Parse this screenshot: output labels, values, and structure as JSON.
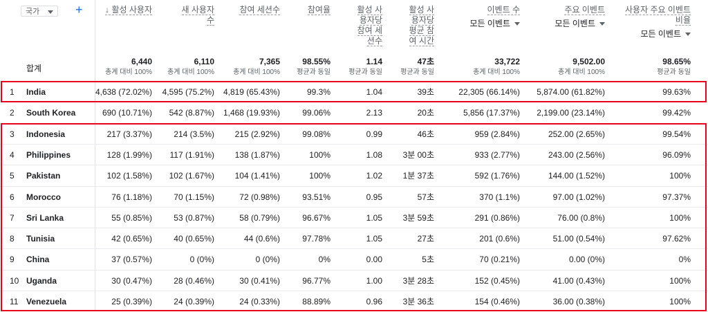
{
  "dimension": {
    "label": "국가"
  },
  "columns": [
    {
      "key": "active_users",
      "title": "↓ 활성 사용자",
      "lines": [
        "↓ 활성 사용자"
      ],
      "sub": ""
    },
    {
      "key": "new_users",
      "title": "새 사용자 수",
      "lines": [
        "새 사용자",
        "수"
      ],
      "sub": ""
    },
    {
      "key": "engaged_sessions",
      "title": "참여 세션수",
      "lines": [
        "참여 세션수"
      ],
      "sub": ""
    },
    {
      "key": "engagement_rate",
      "title": "참여율",
      "lines": [
        "참여율"
      ],
      "sub": ""
    },
    {
      "key": "engaged_sessions_per_user",
      "title": "활성 사용자당 참여 세션수",
      "lines": [
        "활성 사",
        "용자당",
        "참여 세",
        "션수"
      ],
      "sub": ""
    },
    {
      "key": "avg_engagement_time",
      "title": "활성 사용자당 평균 참여 시간",
      "lines": [
        "활성 사",
        "용자당",
        "평균 참",
        "여 시간"
      ],
      "sub": ""
    },
    {
      "key": "event_count",
      "title": "이벤트 수",
      "lines": [
        "이벤트 수"
      ],
      "sub": "모든 이벤트"
    },
    {
      "key": "key_events",
      "title": "주요 이벤트",
      "lines": [
        "주요 이벤트"
      ],
      "sub": "모든 이벤트"
    },
    {
      "key": "user_key_event_rate",
      "title": "사용자 주요 이벤트 비율",
      "lines": [
        "사용자 주요 이벤트",
        "비율"
      ],
      "sub": "모든 이벤트"
    }
  ],
  "totals": {
    "label": "합계",
    "values": [
      {
        "v": "6,440",
        "n": "총계 대비 100%"
      },
      {
        "v": "6,110",
        "n": "총계 대비 100%"
      },
      {
        "v": "7,365",
        "n": "총계 대비 100%"
      },
      {
        "v": "98.55%",
        "n": "평균과 동일"
      },
      {
        "v": "1.14",
        "n": "평균과 동일"
      },
      {
        "v": "47초",
        "n": "평균과 동일"
      },
      {
        "v": "33,722",
        "n": "총계 대비 100%"
      },
      {
        "v": "9,502.00",
        "n": "총계 대비 100%"
      },
      {
        "v": "98.65%",
        "n": "평균과 동일"
      }
    ]
  },
  "rows": [
    {
      "idx": "1",
      "country": "India",
      "values": [
        "4,638 (72.02%)",
        "4,595 (75.2%)",
        "4,819 (65.43%)",
        "99.3%",
        "1.04",
        "39초",
        "22,305 (66.14%)",
        "5,874.00 (61.82%)",
        "99.63%"
      ]
    },
    {
      "idx": "2",
      "country": "South Korea",
      "values": [
        "690 (10.71%)",
        "542 (8.87%)",
        "1,468 (19.93%)",
        "99.06%",
        "2.13",
        "20초",
        "5,856 (17.37%)",
        "2,199.00 (23.14%)",
        "99.42%"
      ]
    },
    {
      "idx": "3",
      "country": "Indonesia",
      "values": [
        "217 (3.37%)",
        "214 (3.5%)",
        "215 (2.92%)",
        "99.08%",
        "0.99",
        "46초",
        "959 (2.84%)",
        "252.00 (2.65%)",
        "99.54%"
      ]
    },
    {
      "idx": "4",
      "country": "Philippines",
      "values": [
        "128 (1.99%)",
        "117 (1.91%)",
        "138 (1.87%)",
        "100%",
        "1.08",
        "3분 00초",
        "933 (2.77%)",
        "243.00 (2.56%)",
        "96.09%"
      ]
    },
    {
      "idx": "5",
      "country": "Pakistan",
      "values": [
        "102 (1.58%)",
        "102 (1.67%)",
        "104 (1.41%)",
        "100%",
        "1.02",
        "1분 37초",
        "592 (1.76%)",
        "144.00 (1.52%)",
        "100%"
      ]
    },
    {
      "idx": "6",
      "country": "Morocco",
      "values": [
        "76 (1.18%)",
        "70 (1.15%)",
        "72 (0.98%)",
        "93.51%",
        "0.95",
        "57초",
        "370 (1.1%)",
        "97.00 (1.02%)",
        "97.37%"
      ]
    },
    {
      "idx": "7",
      "country": "Sri Lanka",
      "values": [
        "55 (0.85%)",
        "53 (0.87%)",
        "58 (0.79%)",
        "96.67%",
        "1.05",
        "3분 59초",
        "291 (0.86%)",
        "76.00 (0.8%)",
        "100%"
      ]
    },
    {
      "idx": "8",
      "country": "Tunisia",
      "values": [
        "42 (0.65%)",
        "40 (0.65%)",
        "44 (0.6%)",
        "97.78%",
        "1.05",
        "27초",
        "201 (0.6%)",
        "51.00 (0.54%)",
        "97.62%"
      ]
    },
    {
      "idx": "9",
      "country": "China",
      "values": [
        "37 (0.57%)",
        "0 (0%)",
        "0 (0%)",
        "0%",
        "0.00",
        "5초",
        "70 (0.21%)",
        "0.00 (0%)",
        "0%"
      ]
    },
    {
      "idx": "10",
      "country": "Uganda",
      "values": [
        "30 (0.47%)",
        "28 (0.46%)",
        "30 (0.41%)",
        "96.77%",
        "1.00",
        "3분 28초",
        "152 (0.45%)",
        "41.00 (0.43%)",
        "100%"
      ]
    },
    {
      "idx": "11",
      "country": "Venezuela",
      "values": [
        "25 (0.39%)",
        "24 (0.39%)",
        "24 (0.33%)",
        "88.89%",
        "0.96",
        "3분 36초",
        "154 (0.46%)",
        "36.00 (0.38%)",
        "100%"
      ]
    }
  ],
  "highlight_color": "#e8001c",
  "accent_color": "#1a73e8"
}
